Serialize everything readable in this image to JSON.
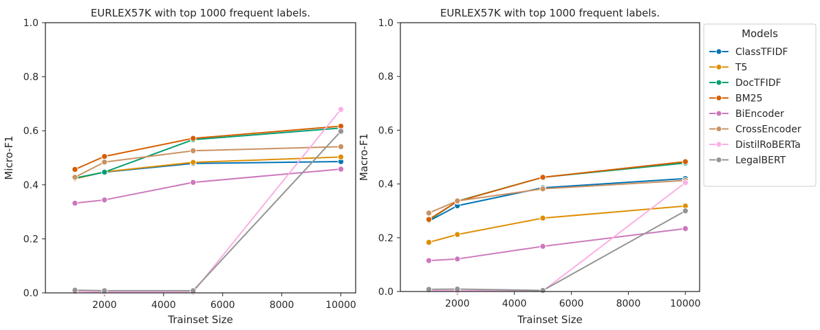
{
  "chart_data": [
    {
      "type": "line",
      "title": "EURLEX57K with top 1000 frequent labels.",
      "xlabel": "Trainset Size",
      "ylabel": "Micro-F1",
      "xlim": [
        0,
        10500
      ],
      "ylim": [
        0.0,
        1.0
      ],
      "xticks": [
        2000,
        4000,
        6000,
        8000,
        10000
      ],
      "yticks": [
        0.0,
        0.2,
        0.4,
        0.6,
        0.8,
        1.0
      ],
      "x": [
        1000,
        2000,
        5000,
        10000
      ],
      "series": [
        {
          "name": "ClassTFIDF",
          "color": "#0173b2",
          "values": [
            0.423,
            0.447,
            0.479,
            0.486
          ]
        },
        {
          "name": "T5",
          "color": "#de8f05",
          "values": [
            0.422,
            0.448,
            0.483,
            0.503
          ]
        },
        {
          "name": "DocTFIDF",
          "color": "#029e73",
          "values": [
            0.425,
            0.447,
            0.567,
            0.61
          ]
        },
        {
          "name": "BM25",
          "color": "#d55e00",
          "values": [
            0.457,
            0.505,
            0.572,
            0.617
          ]
        },
        {
          "name": "BiEncoder",
          "color": "#cc78bc",
          "values": [
            0.332,
            0.344,
            0.409,
            0.458
          ]
        },
        {
          "name": "CrossEncoder",
          "color": "#ca9161",
          "values": [
            0.428,
            0.484,
            0.526,
            0.541
          ]
        },
        {
          "name": "DistilRoBERTa",
          "color": "#fbafe4",
          "values": [
            0.005,
            0.003,
            0.003,
            0.679
          ]
        },
        {
          "name": "LegalBERT",
          "color": "#949494",
          "values": [
            0.01,
            0.008,
            0.008,
            0.598
          ]
        }
      ]
    },
    {
      "type": "line",
      "title": "EURLEX57K with top 1000 frequent labels.",
      "xlabel": "Trainset Size",
      "ylabel": "Macro-F1",
      "xlim": [
        0,
        10500
      ],
      "ylim": [
        0.0,
        1.0
      ],
      "xticks": [
        2000,
        4000,
        6000,
        8000,
        10000
      ],
      "yticks": [
        0.0,
        0.2,
        0.4,
        0.6,
        0.8,
        1.0
      ],
      "x": [
        1000,
        2000,
        5000,
        10000
      ],
      "legend_title": "Models",
      "legend_position": "outside-right",
      "series": [
        {
          "name": "ClassTFIDF",
          "color": "#0173b2",
          "values": [
            0.262,
            0.319,
            0.386,
            0.42
          ]
        },
        {
          "name": "T5",
          "color": "#de8f05",
          "values": [
            0.183,
            0.212,
            0.273,
            0.318
          ]
        },
        {
          "name": "DocTFIDF",
          "color": "#029e73",
          "values": [
            0.265,
            0.336,
            0.425,
            0.478
          ]
        },
        {
          "name": "BM25",
          "color": "#d55e00",
          "values": [
            0.268,
            0.335,
            0.425,
            0.483
          ]
        },
        {
          "name": "BiEncoder",
          "color": "#cc78bc",
          "values": [
            0.115,
            0.121,
            0.168,
            0.234
          ]
        },
        {
          "name": "CrossEncoder",
          "color": "#ca9161",
          "values": [
            0.292,
            0.337,
            0.382,
            0.413
          ]
        },
        {
          "name": "DistilRoBERTa",
          "color": "#fbafe4",
          "values": [
            0.004,
            0.003,
            0.002,
            0.405
          ]
        },
        {
          "name": "LegalBERT",
          "color": "#949494",
          "values": [
            0.008,
            0.009,
            0.004,
            0.3
          ]
        }
      ]
    }
  ]
}
